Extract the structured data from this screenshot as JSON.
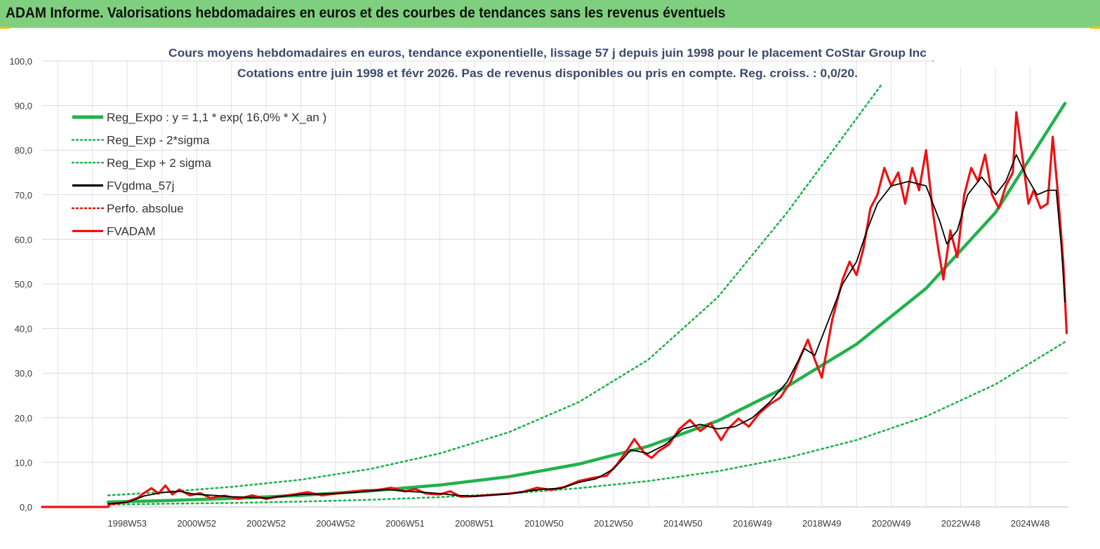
{
  "header": {
    "title": "ADAM Informe. Valorisations hebdomadaires en euros et des courbes de tendances sans les revenus éventuels"
  },
  "chart_data": {
    "type": "line",
    "title": "Cours moyens hebdomadaires en euros, tendance exponentielle, lissage 57 j depuis juin 1998 pour le placement CoStar Group Inc",
    "subtitle": "Cotations entre juin 1998 et févr 2026. Pas de revenus disponibles ou pris en compte. Reg. croiss. : 0,0/20.",
    "xlabel": "",
    "ylabel": "",
    "ylim": [
      0,
      100
    ],
    "xlim": [
      1996.55,
      2026.1
    ],
    "grid": true,
    "legend_position": "top-left",
    "yticks": [
      "0,0",
      "10,0",
      "20,0",
      "30,0",
      "40,0",
      "50,0",
      "60,0",
      "70,0",
      "80,0",
      "90,0",
      "100,0"
    ],
    "xticks": [
      {
        "label": "1998W53",
        "x": 1999.0
      },
      {
        "label": "2000W52",
        "x": 2001.0
      },
      {
        "label": "2002W52",
        "x": 2003.0
      },
      {
        "label": "2004W52",
        "x": 2005.0
      },
      {
        "label": "2006W51",
        "x": 2007.0
      },
      {
        "label": "2008W51",
        "x": 2009.0
      },
      {
        "label": "2010W50",
        "x": 2011.0
      },
      {
        "label": "2012W50",
        "x": 2013.0
      },
      {
        "label": "2014W50",
        "x": 2015.0
      },
      {
        "label": "2016W49",
        "x": 2017.0
      },
      {
        "label": "2018W49",
        "x": 2019.0
      },
      {
        "label": "2020W49",
        "x": 2021.0
      },
      {
        "label": "2022W48",
        "x": 2023.0
      },
      {
        "label": "2024W48",
        "x": 2025.0
      }
    ],
    "series": [
      {
        "name": "Reg_Expo : y = 1,1 * exp( 16,0% *  X_an )",
        "color": "#22b24c",
        "style": "solid-thick",
        "points": [
          [
            1998.45,
            1.1
          ],
          [
            2000,
            1.4
          ],
          [
            2002,
            1.9
          ],
          [
            2004,
            2.6
          ],
          [
            2006,
            3.6
          ],
          [
            2008,
            4.9
          ],
          [
            2010,
            6.8
          ],
          [
            2012,
            9.6
          ],
          [
            2014,
            13.6
          ],
          [
            2016,
            19.3
          ],
          [
            2018,
            27.0
          ],
          [
            2020,
            36.5
          ],
          [
            2022,
            49.0
          ],
          [
            2024,
            66.0
          ],
          [
            2026.0,
            90.5
          ]
        ]
      },
      {
        "name": "Reg_Exp - 2*sigma",
        "color": "#22b24c",
        "style": "dotted",
        "points": [
          [
            1998.45,
            0.5
          ],
          [
            2000,
            0.7
          ],
          [
            2002,
            0.9
          ],
          [
            2004,
            1.2
          ],
          [
            2006,
            1.6
          ],
          [
            2008,
            2.2
          ],
          [
            2010,
            3.0
          ],
          [
            2012,
            4.2
          ],
          [
            2014,
            5.8
          ],
          [
            2016,
            8.0
          ],
          [
            2018,
            11.0
          ],
          [
            2020,
            15.0
          ],
          [
            2022,
            20.3
          ],
          [
            2024,
            27.5
          ],
          [
            2026.0,
            37.0
          ]
        ]
      },
      {
        "name": "Reg_Exp + 2 sigma",
        "color": "#22b24c",
        "style": "dotted",
        "points": [
          [
            1998.45,
            2.6
          ],
          [
            2000,
            3.3
          ],
          [
            2002,
            4.5
          ],
          [
            2004,
            6.1
          ],
          [
            2006,
            8.5
          ],
          [
            2008,
            12.0
          ],
          [
            2010,
            16.8
          ],
          [
            2012,
            23.5
          ],
          [
            2014,
            33.0
          ],
          [
            2016,
            47.0
          ],
          [
            2018,
            66.0
          ],
          [
            2020.7,
            94.5
          ]
        ]
      },
      {
        "name": "FVgdma_57j",
        "color": "#000000",
        "style": "solid",
        "points": [
          [
            1998.45,
            0.7
          ],
          [
            1999,
            1.0
          ],
          [
            1999.5,
            2.5
          ],
          [
            2000,
            3.2
          ],
          [
            2000.5,
            3.5
          ],
          [
            2001,
            2.8
          ],
          [
            2001.5,
            2.6
          ],
          [
            2002,
            2.3
          ],
          [
            2003,
            2.0
          ],
          [
            2004,
            2.8
          ],
          [
            2005,
            3.0
          ],
          [
            2005.5,
            3.2
          ],
          [
            2006,
            3.6
          ],
          [
            2006.5,
            3.9
          ],
          [
            2007,
            3.5
          ],
          [
            2007.5,
            3.3
          ],
          [
            2008,
            3.0
          ],
          [
            2008.5,
            2.6
          ],
          [
            2009,
            2.4
          ],
          [
            2010,
            2.9
          ],
          [
            2010.5,
            3.5
          ],
          [
            2011,
            4.0
          ],
          [
            2011.5,
            4.2
          ],
          [
            2012,
            5.5
          ],
          [
            2012.5,
            6.3
          ],
          [
            2013,
            8.5
          ],
          [
            2013.3,
            11.0
          ],
          [
            2013.5,
            12.8
          ],
          [
            2014,
            12.0
          ],
          [
            2014.5,
            14.0
          ],
          [
            2015,
            17.5
          ],
          [
            2015.5,
            18.5
          ],
          [
            2016,
            17.5
          ],
          [
            2016.5,
            18.0
          ],
          [
            2017,
            20.0
          ],
          [
            2017.5,
            23.5
          ],
          [
            2018,
            28.0
          ],
          [
            2018.5,
            35.5
          ],
          [
            2018.8,
            34.0
          ],
          [
            2019.2,
            42.0
          ],
          [
            2019.6,
            50.0
          ],
          [
            2020,
            55.0
          ],
          [
            2020.3,
            62.0
          ],
          [
            2020.6,
            68.0
          ],
          [
            2021,
            72.0
          ],
          [
            2021.5,
            73.0
          ],
          [
            2022,
            72.0
          ],
          [
            2022.4,
            64.0
          ],
          [
            2022.6,
            59.0
          ],
          [
            2022.9,
            62.0
          ],
          [
            2023.2,
            70.0
          ],
          [
            2023.6,
            74.0
          ],
          [
            2024,
            70.0
          ],
          [
            2024.3,
            73.0
          ],
          [
            2024.6,
            79.0
          ],
          [
            2024.9,
            74.0
          ],
          [
            2025.2,
            70.0
          ],
          [
            2025.5,
            71.0
          ],
          [
            2025.75,
            71.0
          ],
          [
            2025.9,
            58.0
          ],
          [
            2026.0,
            46.0
          ]
        ]
      },
      {
        "name": "Perfo. absolue",
        "color": "#e01010",
        "style": "dotted",
        "points": []
      },
      {
        "name": "FVADAM",
        "color": "#ee1111",
        "style": "solid-thick",
        "points": [
          [
            1996.55,
            0.0
          ],
          [
            1998.45,
            0.0
          ],
          [
            1998.5,
            0.6
          ],
          [
            1998.8,
            0.9
          ],
          [
            1999,
            1.2
          ],
          [
            1999.3,
            2.0
          ],
          [
            1999.5,
            3.2
          ],
          [
            1999.7,
            4.2
          ],
          [
            1999.9,
            3.0
          ],
          [
            2000.1,
            4.8
          ],
          [
            2000.3,
            2.8
          ],
          [
            2000.5,
            3.9
          ],
          [
            2000.8,
            2.6
          ],
          [
            2001.1,
            3.1
          ],
          [
            2001.4,
            2.0
          ],
          [
            2001.8,
            2.5
          ],
          [
            2002.2,
            1.8
          ],
          [
            2002.6,
            2.6
          ],
          [
            2003,
            1.8
          ],
          [
            2003.4,
            2.4
          ],
          [
            2003.8,
            2.8
          ],
          [
            2004.2,
            3.3
          ],
          [
            2004.6,
            2.6
          ],
          [
            2005,
            3.0
          ],
          [
            2005.4,
            3.4
          ],
          [
            2005.8,
            3.7
          ],
          [
            2006.2,
            3.8
          ],
          [
            2006.6,
            4.3
          ],
          [
            2007,
            3.5
          ],
          [
            2007.3,
            4.0
          ],
          [
            2007.6,
            3.0
          ],
          [
            2008,
            2.8
          ],
          [
            2008.3,
            3.5
          ],
          [
            2008.6,
            2.3
          ],
          [
            2009,
            2.4
          ],
          [
            2009.5,
            2.7
          ],
          [
            2010,
            3.0
          ],
          [
            2010.4,
            3.4
          ],
          [
            2010.8,
            4.3
          ],
          [
            2011.2,
            3.8
          ],
          [
            2011.6,
            4.5
          ],
          [
            2012,
            5.8
          ],
          [
            2012.4,
            6.5
          ],
          [
            2012.8,
            7.0
          ],
          [
            2013.1,
            9.5
          ],
          [
            2013.4,
            12.8
          ],
          [
            2013.6,
            15.2
          ],
          [
            2013.9,
            12.0
          ],
          [
            2014.1,
            11.0
          ],
          [
            2014.3,
            12.5
          ],
          [
            2014.6,
            14.0
          ],
          [
            2014.9,
            17.5
          ],
          [
            2015.2,
            19.5
          ],
          [
            2015.5,
            17.0
          ],
          [
            2015.8,
            18.8
          ],
          [
            2016.1,
            15.0
          ],
          [
            2016.3,
            17.5
          ],
          [
            2016.6,
            19.8
          ],
          [
            2016.9,
            18.0
          ],
          [
            2017.2,
            21.0
          ],
          [
            2017.5,
            23.0
          ],
          [
            2017.8,
            24.5
          ],
          [
            2018.1,
            28.0
          ],
          [
            2018.4,
            34.0
          ],
          [
            2018.6,
            37.5
          ],
          [
            2018.8,
            33.0
          ],
          [
            2019.0,
            29.0
          ],
          [
            2019.3,
            42.0
          ],
          [
            2019.6,
            51.0
          ],
          [
            2019.8,
            55.0
          ],
          [
            2020.0,
            52.0
          ],
          [
            2020.2,
            58.0
          ],
          [
            2020.4,
            67.0
          ],
          [
            2020.6,
            70.0
          ],
          [
            2020.8,
            76.0
          ],
          [
            2021,
            72.0
          ],
          [
            2021.2,
            75.0
          ],
          [
            2021.4,
            68.0
          ],
          [
            2021.6,
            76.0
          ],
          [
            2021.8,
            71.0
          ],
          [
            2022.0,
            80.0
          ],
          [
            2022.2,
            66.0
          ],
          [
            2022.35,
            58.0
          ],
          [
            2022.5,
            51.0
          ],
          [
            2022.7,
            62.0
          ],
          [
            2022.9,
            56.0
          ],
          [
            2023.1,
            70.0
          ],
          [
            2023.3,
            76.0
          ],
          [
            2023.5,
            73.0
          ],
          [
            2023.7,
            79.0
          ],
          [
            2023.9,
            70.0
          ],
          [
            2024.1,
            67.0
          ],
          [
            2024.3,
            72.0
          ],
          [
            2024.5,
            75.0
          ],
          [
            2024.6,
            88.5
          ],
          [
            2024.75,
            80.0
          ],
          [
            2024.95,
            68.0
          ],
          [
            2025.1,
            71.0
          ],
          [
            2025.3,
            67.0
          ],
          [
            2025.5,
            68.0
          ],
          [
            2025.65,
            83.0
          ],
          [
            2025.8,
            70.0
          ],
          [
            2025.95,
            55.0
          ],
          [
            2026.05,
            39.0
          ]
        ]
      }
    ]
  }
}
